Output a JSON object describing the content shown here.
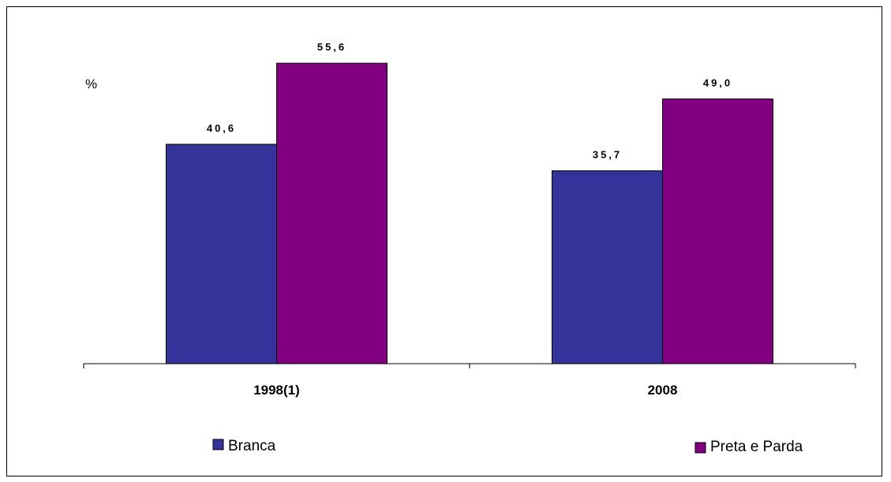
{
  "chart_data": {
    "type": "bar",
    "categories": [
      "1998(1)",
      "2008"
    ],
    "series": [
      {
        "name": "Branca",
        "values": [
          40.6,
          35.7
        ],
        "labels": [
          "40,6",
          "35,7"
        ],
        "color": "#333399"
      },
      {
        "name": "Preta e Parda",
        "values": [
          55.6,
          49.0
        ],
        "labels": [
          "55,6",
          "49,0"
        ],
        "color": "#800080"
      }
    ],
    "ylabel": "%",
    "ylim": [
      0,
      67.3
    ],
    "legend_position": "bottom",
    "grid": false
  }
}
